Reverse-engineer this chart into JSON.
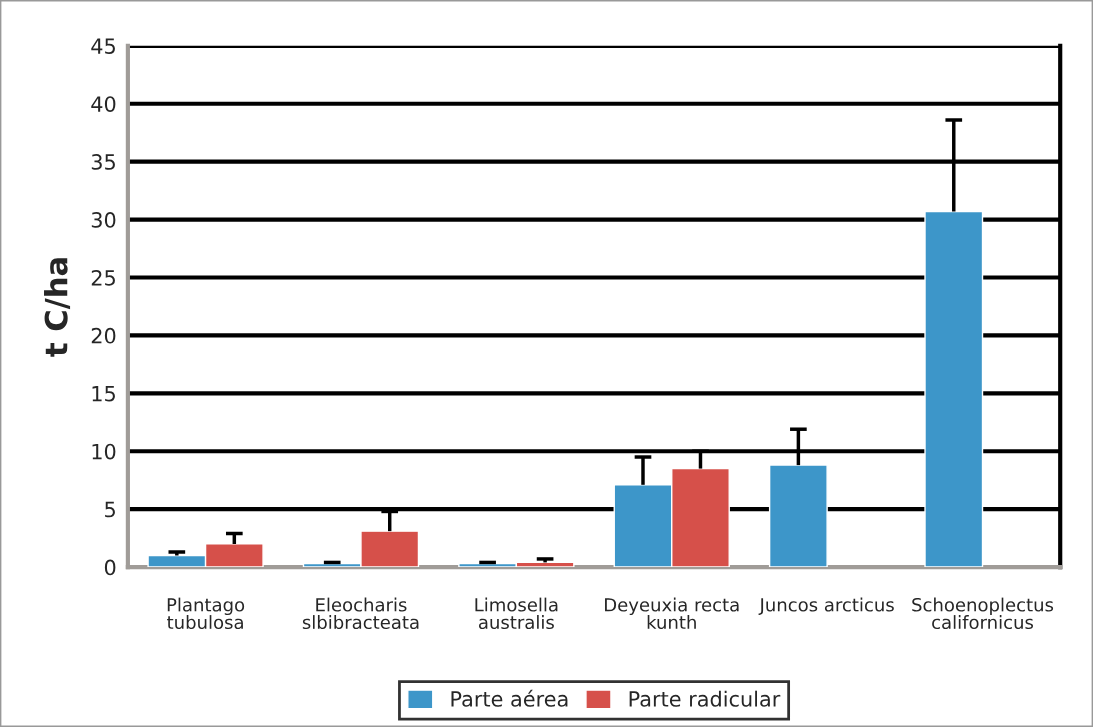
{
  "chart_data": {
    "type": "bar",
    "ylabel": "t C/ha",
    "categories": [
      "Plantago\ntubulosa",
      "Eleocharis\nslbibracteata",
      "Limosella\naustralis",
      "Deyeuxia recta\nkunth",
      "Juncos arcticus",
      "Schoenoplectus\ncalifornicus"
    ],
    "series": [
      {
        "name": "Parte aérea",
        "color": "#3d96c9",
        "values": [
          1.0,
          0.3,
          0.3,
          7.1,
          8.8,
          30.7
        ],
        "errors": [
          [
            1.0,
            1.3
          ],
          [
            0.3,
            0.4
          ],
          [
            0.3,
            0.4
          ],
          [
            7.1,
            9.5
          ],
          [
            8.8,
            11.9
          ],
          [
            30.7,
            38.6
          ]
        ]
      },
      {
        "name": "Parte radicular",
        "color": "#d6504a",
        "values": [
          2.0,
          3.1,
          0.4,
          8.5,
          null,
          null
        ],
        "errors": [
          [
            2.0,
            2.9
          ],
          [
            3.1,
            4.8
          ],
          [
            0.4,
            0.7
          ],
          [
            8.5,
            10.0
          ],
          null,
          null
        ]
      }
    ],
    "ylim": [
      0,
      45
    ],
    "yticks": [
      0,
      5,
      10,
      15,
      20,
      25,
      30,
      35,
      40,
      45
    ],
    "grid": "y",
    "legend": "bottom"
  }
}
